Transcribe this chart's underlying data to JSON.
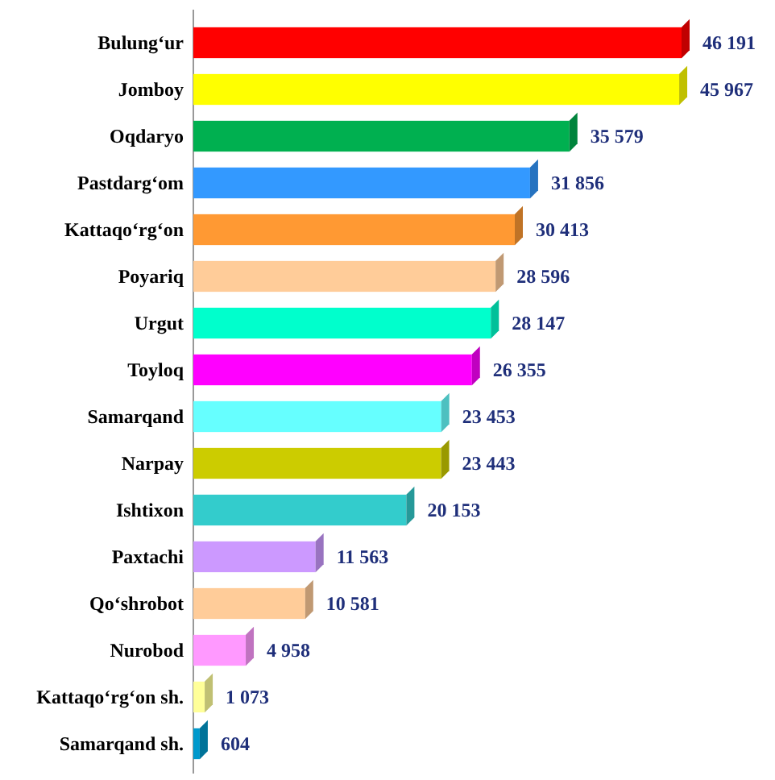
{
  "chart_data": {
    "type": "bar",
    "orientation": "horizontal",
    "categories": [
      "Bulung‘ur",
      "Jomboy",
      "Oqdaryo",
      "Pastdarg‘om",
      "Kattaqo‘rg‘on",
      "Poyariq",
      "Urgut",
      "Toyloq",
      "Samarqand",
      "Narpay",
      "Ishtixon",
      "Paxtachi",
      "Qo‘shrobot",
      "Nurobod",
      "Kattaqo‘rg‘on sh.",
      "Samarqand sh."
    ],
    "values": [
      46191,
      45967,
      35579,
      31856,
      30413,
      28596,
      28147,
      26355,
      23453,
      23443,
      20153,
      11563,
      10581,
      4958,
      1073,
      604
    ],
    "value_labels": [
      "46 191",
      "45 967",
      "35 579",
      "31 856",
      "30 413",
      "28 596",
      "28 147",
      "26 355",
      "23 453",
      "23 443",
      "20 153",
      "11 563",
      "10 581",
      "4 958",
      "1 073",
      "604"
    ],
    "colors": [
      "#ff0000",
      "#ffff00",
      "#00b050",
      "#3399ff",
      "#ff9933",
      "#ffcc99",
      "#00ffcc",
      "#ff00ff",
      "#66ffff",
      "#cccc00",
      "#33cccc",
      "#cc99ff",
      "#ffcc99",
      "#ff99ff",
      "#ffff99",
      "#0099cc"
    ]
  }
}
